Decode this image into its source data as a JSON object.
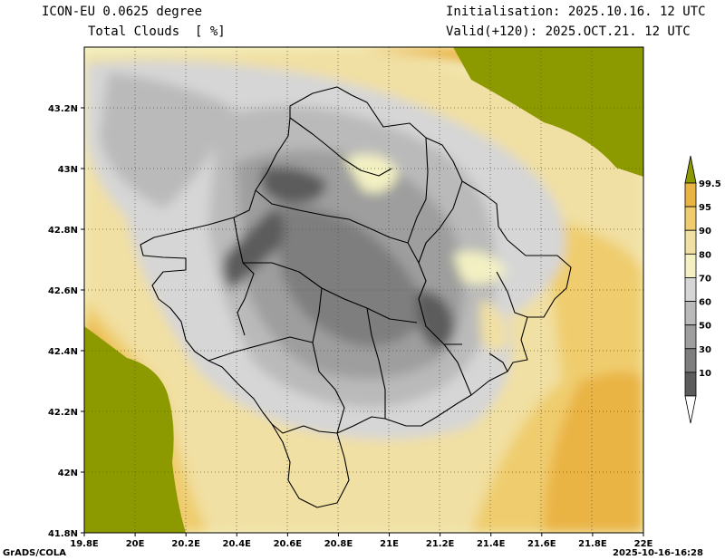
{
  "header": {
    "model": "ICON-EU 0.0625 degree",
    "variable": "Total Clouds  [ %]",
    "init": "Initialisation: 2025.10.16. 12 UTC",
    "valid": "Valid(+120): 2025.OCT.21. 12 UTC"
  },
  "footer": {
    "credit": "GrADS/COLA",
    "timestamp": "2025-10-16-16:28"
  },
  "axes": {
    "lon": {
      "min": 19.8,
      "max": 22.0,
      "ticks": [
        "19.8E",
        "20E",
        "20.2E",
        "20.4E",
        "20.6E",
        "20.8E",
        "21E",
        "21.2E",
        "21.4E",
        "21.6E",
        "21.8E",
        "22E"
      ]
    },
    "lat": {
      "min": 41.8,
      "max": 43.4,
      "ticks": [
        "41.8N",
        "42N",
        "42.2N",
        "42.4N",
        "42.6N",
        "42.8N",
        "43N",
        "43.2N"
      ]
    }
  },
  "colorbar": {
    "labels": [
      "99.5",
      "95",
      "90",
      "80",
      "70",
      "60",
      "50",
      "30",
      "10"
    ],
    "colors": [
      "#8c9a00",
      "#eab444",
      "#efcd6e",
      "#f1e0a3",
      "#f3f1c3",
      "#d6d6d6",
      "#bababa",
      "#9e9e9e",
      "#7e7e7e",
      "#5c5c5c",
      "#ffffff"
    ]
  },
  "map": {
    "land_outside_color": "#8c9a00",
    "grid": true,
    "grid_style": "dotted"
  }
}
